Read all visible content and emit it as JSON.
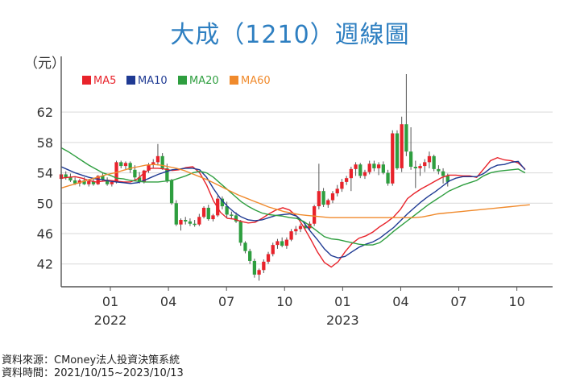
{
  "chart_data": {
    "type": "candlestick",
    "title": "大成（1210）週線圖",
    "ylabel": "（元）",
    "ylim": [
      39,
      67
    ],
    "y_ticks": [
      42,
      46,
      50,
      54,
      58,
      62
    ],
    "x_ticks": [
      {
        "label": "01",
        "year": "2022",
        "x": 11
      },
      {
        "label": "04",
        "x": 24
      },
      {
        "label": "07",
        "x": 37
      },
      {
        "label": "10",
        "x": 50
      },
      {
        "label": "01",
        "year": "2023",
        "x": 63
      },
      {
        "label": "04",
        "x": 76
      },
      {
        "label": "07",
        "x": 89
      },
      {
        "label": "10",
        "x": 102
      }
    ],
    "xlim": [
      0,
      110
    ],
    "grid": "horizontal",
    "legend_placement": "top-left",
    "series": [
      {
        "name": "MA5",
        "color": "#e8232b",
        "values": [
          53.3,
          53.4,
          53.5,
          53.3,
          53.0,
          52.8,
          52.9,
          53.0,
          52.9,
          52.8,
          52.8,
          53.2,
          54.0,
          54.6,
          54.6,
          54.5,
          54.3,
          54.4,
          54.7,
          54.8,
          54.0,
          52.4,
          50.3,
          48.8,
          48.0,
          47.9,
          47.6,
          47.4,
          47.5,
          48.0,
          48.6,
          49.1,
          49.4,
          49.1,
          48.3,
          46.9,
          45.3,
          43.6,
          42.2,
          41.6,
          42.3,
          43.6,
          44.7,
          45.4,
          45.7,
          46.2,
          46.9,
          47.5,
          48.2,
          49.2,
          50.6,
          51.3,
          51.9,
          52.4,
          52.9,
          53.4,
          53.7,
          53.7,
          53.6,
          53.6,
          53.4,
          54.5,
          55.6,
          56.0,
          55.7,
          55.6,
          55.3,
          54.5
        ]
      },
      {
        "name": "MA10",
        "color": "#1f3a93",
        "values": [
          54.8,
          54.4,
          54.0,
          53.7,
          53.4,
          53.2,
          53.1,
          52.9,
          52.8,
          52.7,
          52.6,
          52.7,
          53.0,
          53.4,
          53.8,
          54.1,
          54.4,
          54.5,
          54.6,
          54.6,
          54.4,
          53.4,
          51.9,
          50.6,
          49.6,
          48.8,
          48.2,
          47.8,
          47.7,
          47.8,
          48.1,
          48.4,
          48.5,
          48.6,
          48.3,
          47.5,
          46.3,
          45.2,
          44.0,
          43.1,
          42.8,
          43.0,
          43.6,
          44.2,
          44.6,
          44.9,
          45.4,
          46.1,
          46.8,
          47.7,
          48.6,
          49.4,
          50.2,
          50.9,
          51.5,
          52.2,
          52.9,
          53.3,
          53.5,
          53.5,
          53.5,
          53.9,
          54.6,
          55.0,
          55.1,
          55.4,
          55.5,
          54.4
        ]
      },
      {
        "name": "MA20",
        "color": "#2e9e3f",
        "values": [
          57.3,
          56.8,
          56.2,
          55.6,
          55.0,
          54.5,
          54.0,
          53.7,
          53.3,
          53.2,
          53.0,
          52.9,
          52.8,
          52.8,
          52.8,
          52.9,
          53.0,
          53.3,
          53.6,
          54.0,
          54.2,
          54.0,
          53.4,
          52.6,
          51.8,
          51.0,
          50.2,
          49.6,
          49.1,
          48.7,
          48.5,
          48.4,
          48.3,
          48.1,
          48.0,
          47.6,
          47.0,
          46.3,
          45.6,
          45.3,
          45.2,
          45.0,
          44.8,
          44.6,
          44.5,
          44.5,
          44.8,
          45.5,
          46.3,
          47.0,
          47.7,
          48.4,
          49.1,
          49.8,
          50.4,
          51.0,
          51.6,
          52.0,
          52.4,
          52.7,
          53.0,
          53.6,
          54.0,
          54.2,
          54.3,
          54.4,
          54.5,
          54.0
        ]
      },
      {
        "name": "MA60",
        "color": "#f08a2c",
        "values": [
          52.0,
          52.3,
          52.6,
          52.9,
          53.2,
          53.5,
          53.8,
          54.0,
          54.3,
          54.6,
          54.8,
          55.0,
          55.1,
          55.0,
          54.8,
          54.6,
          54.3,
          53.9,
          53.5,
          53.1,
          52.6,
          52.1,
          51.6,
          51.1,
          50.7,
          50.3,
          49.9,
          49.5,
          49.2,
          48.9,
          48.7,
          48.5,
          48.4,
          48.3,
          48.2,
          48.1,
          48.1,
          48.1,
          48.1,
          48.1,
          48.1,
          48.1,
          48.1,
          48.1,
          48.1,
          48.1,
          48.1,
          48.2,
          48.4,
          48.6,
          48.7,
          48.8,
          48.9,
          49.0,
          49.1,
          49.2,
          49.3,
          49.4,
          49.5,
          49.6,
          49.7,
          49.8
        ]
      }
    ],
    "ma_x_start": {
      "MA5": 0,
      "MA10": 0,
      "MA20": 0,
      "MA60": 0
    },
    "ma_x_step": {
      "MA5": 1.55,
      "MA10": 1.55,
      "MA20": 1.55,
      "MA60": 1.72
    },
    "candles": {
      "x_start": 0,
      "x_step": 1.03,
      "up_color": "#e8232b",
      "down_color": "#2e9e3f",
      "ohlc": [
        [
          53.2,
          54.0,
          53.0,
          53.8
        ],
        [
          53.8,
          54.2,
          53.1,
          53.4
        ],
        [
          53.4,
          53.9,
          52.8,
          53.0
        ],
        [
          53.0,
          53.4,
          52.4,
          52.6
        ],
        [
          52.6,
          53.2,
          52.2,
          53.0
        ],
        [
          53.0,
          53.4,
          52.4,
          52.5
        ],
        [
          52.5,
          53.2,
          52.2,
          52.9
        ],
        [
          52.9,
          53.3,
          52.3,
          52.5
        ],
        [
          52.5,
          53.7,
          52.4,
          53.6
        ],
        [
          53.6,
          54.0,
          52.9,
          53.1
        ],
        [
          53.1,
          53.4,
          52.3,
          52.5
        ],
        [
          52.5,
          53.0,
          52.2,
          52.8
        ],
        [
          52.8,
          55.6,
          52.6,
          55.4
        ],
        [
          55.4,
          55.6,
          54.6,
          54.9
        ],
        [
          54.9,
          55.5,
          54.4,
          55.3
        ],
        [
          55.3,
          55.5,
          54.0,
          54.4
        ],
        [
          54.4,
          55.0,
          53.1,
          53.4
        ],
        [
          53.4,
          54.1,
          52.6,
          52.8
        ],
        [
          52.8,
          54.4,
          52.6,
          54.3
        ],
        [
          54.3,
          55.3,
          54.0,
          55.1
        ],
        [
          55.1,
          55.8,
          54.6,
          55.4
        ],
        [
          55.4,
          57.8,
          55.0,
          56.2
        ],
        [
          56.2,
          56.6,
          54.4,
          54.6
        ],
        [
          54.6,
          55.2,
          52.7,
          53.0
        ],
        [
          53.0,
          53.2,
          49.8,
          50.0
        ],
        [
          50.0,
          50.4,
          47.0,
          47.2
        ],
        [
          47.2,
          48.0,
          46.4,
          47.8
        ],
        [
          47.8,
          48.2,
          47.2,
          47.6
        ],
        [
          47.6,
          48.0,
          47.0,
          47.3
        ],
        [
          47.3,
          47.8,
          46.9,
          47.2
        ],
        [
          47.2,
          48.6,
          47.0,
          48.2
        ],
        [
          48.2,
          49.6,
          48.0,
          49.4
        ],
        [
          49.4,
          49.8,
          47.7,
          47.9
        ],
        [
          47.9,
          48.6,
          47.6,
          48.4
        ],
        [
          48.4,
          51.0,
          48.2,
          50.6
        ],
        [
          50.6,
          50.9,
          49.2,
          49.6
        ],
        [
          49.6,
          50.2,
          48.0,
          48.5
        ],
        [
          48.5,
          48.9,
          48.0,
          48.4
        ],
        [
          48.4,
          48.8,
          47.4,
          47.6
        ],
        [
          47.6,
          47.8,
          44.4,
          44.8
        ],
        [
          44.8,
          45.0,
          43.4,
          43.7
        ],
        [
          43.7,
          44.0,
          42.0,
          42.4
        ],
        [
          42.4,
          42.7,
          40.2,
          40.6
        ],
        [
          40.6,
          41.4,
          39.8,
          41.2
        ],
        [
          41.2,
          42.6,
          40.8,
          42.3
        ],
        [
          42.3,
          43.6,
          42.0,
          43.3
        ],
        [
          43.3,
          44.8,
          43.0,
          44.5
        ],
        [
          44.5,
          45.3,
          44.0,
          45.0
        ],
        [
          45.0,
          45.5,
          44.2,
          44.4
        ],
        [
          44.4,
          45.5,
          44.0,
          45.2
        ],
        [
          45.2,
          46.6,
          45.0,
          46.3
        ],
        [
          46.3,
          47.0,
          45.8,
          46.6
        ],
        [
          46.6,
          47.3,
          46.2,
          47.0
        ],
        [
          47.0,
          47.5,
          46.4,
          46.7
        ],
        [
          46.7,
          47.6,
          46.5,
          47.3
        ],
        [
          47.3,
          49.8,
          47.0,
          49.6
        ],
        [
          49.6,
          55.2,
          49.2,
          51.6
        ],
        [
          51.6,
          52.0,
          49.5,
          49.8
        ],
        [
          49.8,
          50.6,
          49.4,
          50.4
        ],
        [
          50.4,
          51.6,
          50.0,
          51.3
        ],
        [
          51.3,
          52.4,
          50.9,
          51.9
        ],
        [
          51.9,
          53.2,
          51.5,
          52.8
        ],
        [
          52.8,
          53.6,
          52.4,
          53.3
        ],
        [
          53.3,
          54.8,
          51.6,
          54.5
        ],
        [
          54.5,
          55.4,
          53.6,
          55.1
        ],
        [
          55.1,
          55.3,
          53.3,
          53.6
        ],
        [
          53.6,
          54.4,
          53.2,
          54.1
        ],
        [
          54.1,
          55.6,
          53.8,
          55.2
        ],
        [
          55.2,
          55.6,
          54.2,
          54.6
        ],
        [
          54.6,
          55.4,
          53.7,
          55.1
        ],
        [
          55.1,
          55.5,
          53.8,
          54.0
        ],
        [
          54.0,
          54.4,
          52.3,
          52.6
        ],
        [
          52.6,
          59.6,
          52.3,
          59.2
        ],
        [
          59.2,
          59.6,
          54.4,
          54.6
        ],
        [
          54.6,
          61.4,
          54.1,
          60.4
        ],
        [
          60.4,
          67.0,
          56.2,
          56.8
        ],
        [
          56.8,
          60.0,
          54.4,
          54.8
        ],
        [
          54.8,
          55.6,
          52.0,
          54.6
        ],
        [
          54.6,
          55.2,
          53.6,
          54.9
        ],
        [
          54.9,
          55.8,
          54.1,
          55.4
        ],
        [
          55.4,
          56.8,
          54.6,
          56.2
        ],
        [
          56.2,
          56.4,
          54.2,
          54.5
        ],
        [
          54.5,
          55.0,
          53.8,
          54.2
        ],
        [
          54.2,
          54.6,
          52.6,
          53.6
        ],
        [
          53.6,
          53.9,
          52.2,
          52.8
        ]
      ]
    }
  },
  "source": {
    "line1": "資料來源：CMoney法人投資決策系統",
    "line2": "資料時間：2021/10/15~2023/10/13"
  }
}
